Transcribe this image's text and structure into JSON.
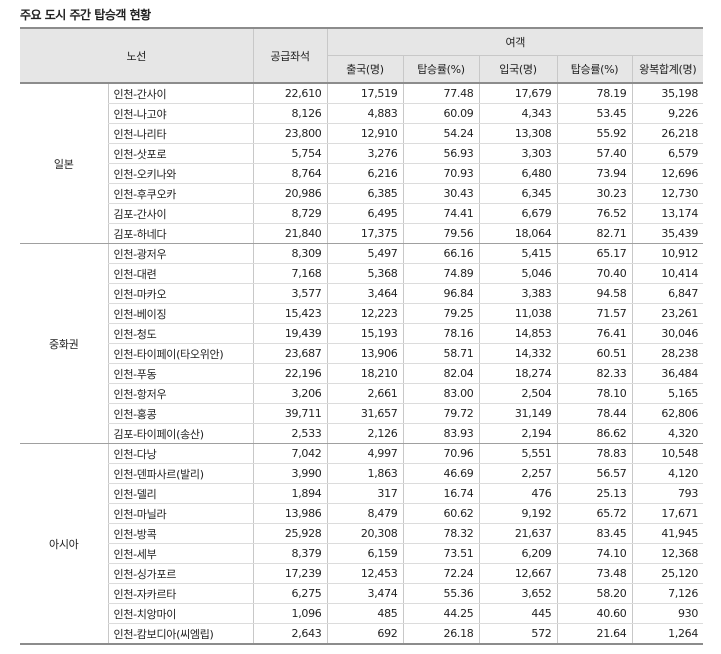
{
  "title": "주요 도시 주간 탑승객 현황",
  "header": {
    "route": "노선",
    "seats": "공급좌석",
    "passengers": "여객",
    "departure": "출국(명)",
    "departure_rate": "탑승률(%)",
    "arrival": "입국(명)",
    "arrival_rate": "탑승률(%)",
    "round_trip_total": "왕복합계(명)"
  },
  "groups": [
    {
      "region": "일본",
      "rows": [
        [
          "인천-간사이",
          "22,610",
          "17,519",
          "77.48",
          "17,679",
          "78.19",
          "35,198"
        ],
        [
          "인천-나고야",
          "8,126",
          "4,883",
          "60.09",
          "4,343",
          "53.45",
          "9,226"
        ],
        [
          "인천-나리타",
          "23,800",
          "12,910",
          "54.24",
          "13,308",
          "55.92",
          "26,218"
        ],
        [
          "인천-삿포로",
          "5,754",
          "3,276",
          "56.93",
          "3,303",
          "57.40",
          "6,579"
        ],
        [
          "인천-오키나와",
          "8,764",
          "6,216",
          "70.93",
          "6,480",
          "73.94",
          "12,696"
        ],
        [
          "인천-후쿠오카",
          "20,986",
          "6,385",
          "30.43",
          "6,345",
          "30.23",
          "12,730"
        ],
        [
          "김포-간사이",
          "8,729",
          "6,495",
          "74.41",
          "6,679",
          "76.52",
          "13,174"
        ],
        [
          "김포-하네다",
          "21,840",
          "17,375",
          "79.56",
          "18,064",
          "82.71",
          "35,439"
        ]
      ]
    },
    {
      "region": "중화권",
      "rows": [
        [
          "인천-광저우",
          "8,309",
          "5,497",
          "66.16",
          "5,415",
          "65.17",
          "10,912"
        ],
        [
          "인천-대련",
          "7,168",
          "5,368",
          "74.89",
          "5,046",
          "70.40",
          "10,414"
        ],
        [
          "인천-마카오",
          "3,577",
          "3,464",
          "96.84",
          "3,383",
          "94.58",
          "6,847"
        ],
        [
          "인천-베이징",
          "15,423",
          "12,223",
          "79.25",
          "11,038",
          "71.57",
          "23,261"
        ],
        [
          "인천-청도",
          "19,439",
          "15,193",
          "78.16",
          "14,853",
          "76.41",
          "30,046"
        ],
        [
          "인천-타이페이(타오위안)",
          "23,687",
          "13,906",
          "58.71",
          "14,332",
          "60.51",
          "28,238"
        ],
        [
          "인천-푸동",
          "22,196",
          "18,210",
          "82.04",
          "18,274",
          "82.33",
          "36,484"
        ],
        [
          "인천-항저우",
          "3,206",
          "2,661",
          "83.00",
          "2,504",
          "78.10",
          "5,165"
        ],
        [
          "인천-홍콩",
          "39,711",
          "31,657",
          "79.72",
          "31,149",
          "78.44",
          "62,806"
        ],
        [
          "김포-타이페이(송산)",
          "2,533",
          "2,126",
          "83.93",
          "2,194",
          "86.62",
          "4,320"
        ]
      ]
    },
    {
      "region": "아시아",
      "rows": [
        [
          "인천-다낭",
          "7,042",
          "4,997",
          "70.96",
          "5,551",
          "78.83",
          "10,548"
        ],
        [
          "인천-덴파사르(발리)",
          "3,990",
          "1,863",
          "46.69",
          "2,257",
          "56.57",
          "4,120"
        ],
        [
          "인천-델리",
          "1,894",
          "317",
          "16.74",
          "476",
          "25.13",
          "793"
        ],
        [
          "인천-마닐라",
          "13,986",
          "8,479",
          "60.62",
          "9,192",
          "65.72",
          "17,671"
        ],
        [
          "인천-방콕",
          "25,928",
          "20,308",
          "78.32",
          "21,637",
          "83.45",
          "41,945"
        ],
        [
          "인천-세부",
          "8,379",
          "6,159",
          "73.51",
          "6,209",
          "74.10",
          "12,368"
        ],
        [
          "인천-싱가포르",
          "17,239",
          "12,453",
          "72.24",
          "12,667",
          "73.48",
          "25,120"
        ],
        [
          "인천-자카르타",
          "6,275",
          "3,474",
          "55.36",
          "3,652",
          "58.20",
          "7,126"
        ],
        [
          "인천-치앙마이",
          "1,096",
          "485",
          "44.25",
          "445",
          "40.60",
          "930"
        ],
        [
          "인천-캄보디아(씨엠립)",
          "2,643",
          "692",
          "26.18",
          "572",
          "21.64",
          "1,264"
        ]
      ]
    }
  ]
}
